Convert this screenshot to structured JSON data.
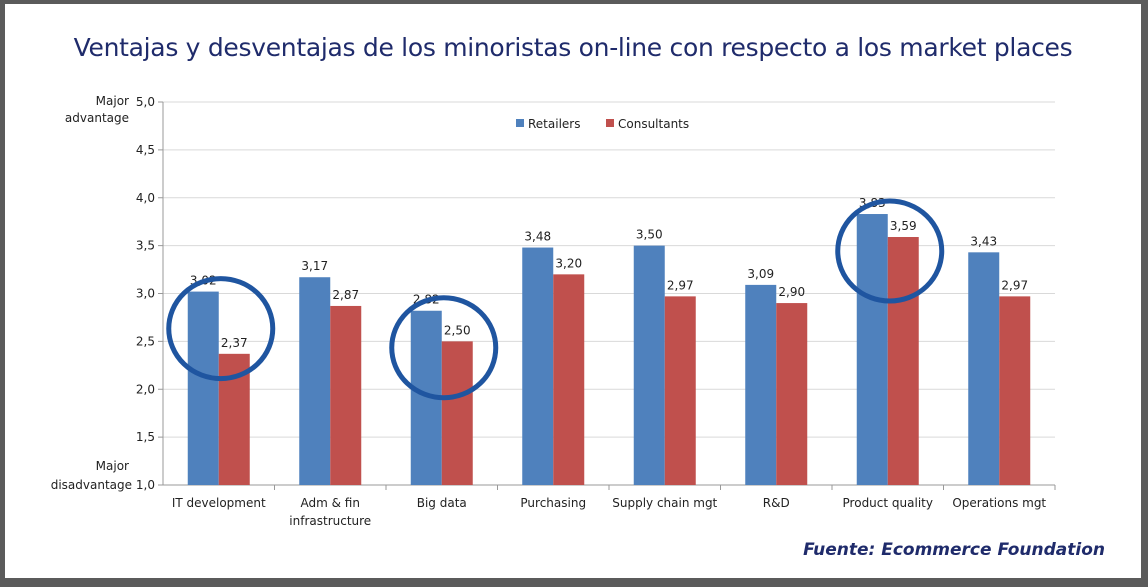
{
  "title": "Ventajas y desventajas de los minoristas on-line con respecto a los market places",
  "source": "Fuente: Ecommerce Foundation",
  "chart_data": {
    "type": "bar",
    "title": "Ventajas y desventajas de los minoristas on-line con respecto a los market places",
    "xlabel": "",
    "ylabel": "",
    "ylim": [
      1.0,
      5.0
    ],
    "y_ticks": [
      "1,0",
      "1,5",
      "2,0",
      "2,5",
      "3,0",
      "3,5",
      "4,0",
      "4,5",
      "5,0"
    ],
    "y_tick_values": [
      1.0,
      1.5,
      2.0,
      2.5,
      3.0,
      3.5,
      4.0,
      4.5,
      5.0
    ],
    "y_top_note": [
      "Major",
      "advantage"
    ],
    "y_bottom_note": [
      "Major",
      "disadvantage"
    ],
    "grid": true,
    "legend_position": "top-center",
    "categories": [
      "IT development",
      "Adm & fin infrastructure",
      "Big data",
      "Purchasing",
      "Supply chain mgt",
      "R&D",
      "Product quality",
      "Operations mgt"
    ],
    "category_lines": [
      [
        "IT development"
      ],
      [
        "Adm & fin",
        "infrastructure"
      ],
      [
        "Big data"
      ],
      [
        "Purchasing"
      ],
      [
        "Supply chain mgt"
      ],
      [
        "R&D"
      ],
      [
        "Product quality"
      ],
      [
        "Operations mgt"
      ]
    ],
    "series": [
      {
        "name": "Retailers",
        "color": "#4f81bd",
        "values": [
          3.02,
          3.17,
          2.82,
          3.48,
          3.5,
          3.09,
          3.83,
          3.43
        ],
        "labels": [
          "3,02",
          "3,17",
          "2,82",
          "3,48",
          "3,50",
          "3,09",
          "3,83",
          "3,43"
        ]
      },
      {
        "name": "Consultants",
        "color": "#c0504d",
        "values": [
          2.37,
          2.87,
          2.5,
          3.2,
          2.97,
          2.9,
          3.59,
          2.97
        ],
        "labels": [
          "2,37",
          "2,87",
          "2,50",
          "3,20",
          "2,97",
          "2,90",
          "3,59",
          "2,97"
        ]
      }
    ],
    "annotations": {
      "circled_categories": [
        "IT development",
        "Big data",
        "Product quality"
      ],
      "circle_color": "#1f55a0"
    }
  }
}
